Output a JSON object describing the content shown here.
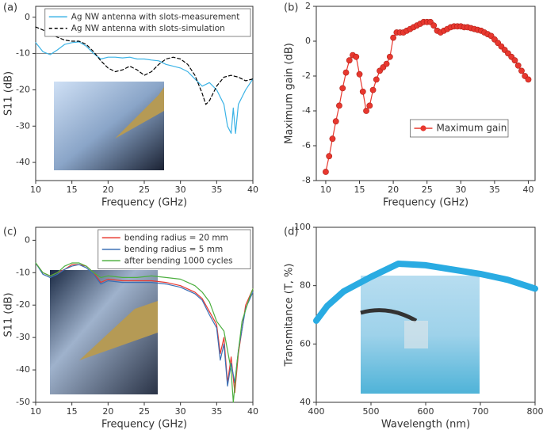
{
  "chart_data": [
    {
      "type": "line",
      "panel_label": "(a)",
      "xlabel": "Frequency (GHz)",
      "ylabel": "S11 (dB)",
      "xlim": [
        10,
        40
      ],
      "ylim": [
        -45,
        3
      ],
      "xticks": [
        10,
        15,
        20,
        25,
        30,
        35,
        40
      ],
      "yticks": [
        -40,
        -30,
        -20,
        -10,
        0
      ],
      "hlines": [
        -10
      ],
      "legend": "upper right",
      "series": [
        {
          "name": "Ag NW antenna with slots-measurement",
          "color": "#3bb3e6",
          "linestyle": "solid",
          "x": [
            10,
            11,
            12,
            13,
            14,
            15,
            16,
            17,
            18,
            19,
            20,
            21,
            22,
            23,
            24,
            25,
            26,
            27,
            28,
            29,
            30,
            31,
            32,
            33,
            34,
            35,
            36,
            36.5,
            37,
            37.3,
            37.6,
            38,
            39,
            40
          ],
          "values": [
            -7,
            -9.5,
            -10.3,
            -9,
            -7.5,
            -7,
            -6.8,
            -8,
            -10,
            -11.5,
            -11,
            -11,
            -11.2,
            -11,
            -11.5,
            -11.5,
            -11.8,
            -12,
            -13,
            -13.5,
            -14,
            -15,
            -17,
            -19,
            -18,
            -20,
            -24,
            -30,
            -32,
            -25,
            -32,
            -24,
            -20,
            -17
          ]
        },
        {
          "name": "Ag NW antenna with slots-simulation",
          "color": "#000000",
          "linestyle": "dashed",
          "x": [
            10,
            11,
            12,
            13,
            14,
            15,
            16,
            17,
            18,
            19,
            20,
            21,
            22,
            23,
            24,
            25,
            26,
            27,
            28,
            29,
            30,
            31,
            32,
            33,
            33.5,
            34,
            35,
            36,
            37,
            38,
            39,
            40
          ],
          "values": [
            -2.7,
            -3.5,
            -4.5,
            -5.5,
            -6.3,
            -6.6,
            -6.6,
            -7.5,
            -9.5,
            -12,
            -14,
            -15,
            -14.5,
            -13.5,
            -14.5,
            -16,
            -15,
            -13,
            -11.5,
            -11,
            -11.5,
            -13,
            -16,
            -21,
            -24,
            -23,
            -19,
            -16.5,
            -16,
            -16.5,
            -17.5,
            -17
          ]
        }
      ]
    },
    {
      "type": "line",
      "panel_label": "(b)",
      "xlabel": "Frequency (GHz)",
      "ylabel": "Maximum gain (dB)",
      "xlim": [
        8.6,
        41
      ],
      "ylim": [
        -8,
        2
      ],
      "xticks": [
        10,
        15,
        20,
        25,
        30,
        35,
        40
      ],
      "yticks": [
        -8,
        -6,
        -4,
        -2,
        0,
        2
      ],
      "legend": "right",
      "markers": true,
      "series": [
        {
          "name": "Maximum gain",
          "color": "#e8382f",
          "linestyle": "solid",
          "x": [
            10,
            10.5,
            11,
            11.5,
            12,
            12.5,
            13,
            13.5,
            14,
            14.5,
            15,
            15.5,
            16,
            16.5,
            17,
            17.5,
            18,
            18.5,
            19,
            19.5,
            20,
            20.5,
            21,
            21.5,
            22,
            22.5,
            23,
            23.5,
            24,
            24.5,
            25,
            25.5,
            26,
            26.5,
            27,
            27.5,
            28,
            28.5,
            29,
            29.5,
            30,
            30.5,
            31,
            31.5,
            32,
            32.5,
            33,
            33.5,
            34,
            34.5,
            35,
            35.5,
            36,
            36.5,
            37,
            37.5,
            38,
            38.5,
            39,
            39.5,
            40
          ],
          "values": [
            -7.5,
            -6.6,
            -5.6,
            -4.6,
            -3.7,
            -2.7,
            -1.8,
            -1.1,
            -0.8,
            -0.9,
            -1.9,
            -2.9,
            -4.0,
            -3.7,
            -2.8,
            -2.2,
            -1.7,
            -1.5,
            -1.3,
            -0.9,
            0.2,
            0.5,
            0.5,
            0.5,
            0.6,
            0.7,
            0.8,
            0.9,
            1.0,
            1.1,
            1.1,
            1.1,
            0.9,
            0.6,
            0.5,
            0.6,
            0.7,
            0.8,
            0.85,
            0.85,
            0.85,
            0.8,
            0.8,
            0.75,
            0.7,
            0.65,
            0.6,
            0.5,
            0.4,
            0.3,
            0.1,
            -0.1,
            -0.3,
            -0.5,
            -0.7,
            -0.9,
            -1.1,
            -1.4,
            -1.7,
            -2.0,
            -2.2
          ]
        }
      ]
    },
    {
      "type": "line",
      "panel_label": "(c)",
      "xlabel": "Frequency (GHz)",
      "ylabel": "S11 (dB)",
      "xlim": [
        10,
        40
      ],
      "ylim": [
        -50,
        4
      ],
      "xticks": [
        10,
        15,
        20,
        25,
        30,
        35,
        40
      ],
      "yticks": [
        -50,
        -40,
        -30,
        -20,
        -10,
        0
      ],
      "legend": "upper right",
      "series": [
        {
          "name": "bending radius = 20 mm",
          "color": "#e8382f",
          "linestyle": "solid",
          "x": [
            10,
            11,
            12,
            13,
            14,
            15,
            16,
            17,
            18,
            19,
            20,
            22,
            24,
            26,
            28,
            30,
            31,
            32,
            33,
            34,
            35,
            35.5,
            36,
            36.5,
            37,
            37.5,
            38,
            39,
            40
          ],
          "values": [
            -7,
            -10,
            -11,
            -10,
            -9,
            -7.5,
            -7.5,
            -8,
            -10,
            -13,
            -12,
            -12.5,
            -12.5,
            -12.5,
            -13,
            -14,
            -15,
            -16,
            -18,
            -22,
            -26,
            -35,
            -30,
            -44,
            -36,
            -47,
            -35,
            -20,
            -15
          ]
        },
        {
          "name": "bending radius = 5 mm",
          "color": "#3a6fb5",
          "linestyle": "solid",
          "x": [
            10,
            11,
            12,
            13,
            14,
            15,
            16,
            17,
            18,
            19,
            20,
            22,
            24,
            26,
            28,
            30,
            31,
            32,
            33,
            34,
            35,
            35.5,
            36,
            36.5,
            37,
            37.5,
            38,
            39,
            40
          ],
          "values": [
            -7,
            -10.5,
            -11.5,
            -10.5,
            -9,
            -8,
            -7.5,
            -8.5,
            -10.5,
            -13.5,
            -12.5,
            -13,
            -13,
            -13,
            -13.5,
            -14.5,
            -15.5,
            -16.5,
            -18.5,
            -23,
            -27,
            -37,
            -32,
            -45,
            -38,
            -44,
            -34,
            -21,
            -16
          ]
        },
        {
          "name": "after bending 1000 cycles",
          "color": "#4caf3f",
          "linestyle": "solid",
          "x": [
            10,
            11,
            12,
            13,
            14,
            15,
            16,
            17,
            18,
            19,
            20,
            22,
            24,
            26,
            28,
            30,
            31,
            32,
            33,
            34,
            35,
            36,
            37,
            37.3,
            37.8,
            38.5,
            39.5,
            40
          ],
          "values": [
            -7,
            -10,
            -11,
            -10,
            -8,
            -7,
            -7,
            -8,
            -10,
            -11.5,
            -11,
            -11.5,
            -11.5,
            -11,
            -11.5,
            -12,
            -13,
            -14,
            -16,
            -19,
            -25,
            -28,
            -40,
            -50,
            -38,
            -25,
            -18,
            -15
          ]
        }
      ]
    },
    {
      "type": "line",
      "panel_label": "(d)",
      "xlabel": "Wavelength (nm)",
      "ylabel": "Transmitance (T, %)",
      "xlim": [
        400,
        800
      ],
      "ylim": [
        40,
        100
      ],
      "xticks": [
        400,
        500,
        600,
        700,
        800
      ],
      "yticks": [
        40,
        60,
        80,
        100
      ],
      "series": [
        {
          "color": "#29abe2",
          "linestyle": "thick",
          "x": [
            400,
            420,
            450,
            500,
            550,
            600,
            650,
            700,
            750,
            800
          ],
          "values": [
            68,
            73,
            78,
            83,
            87.5,
            87,
            85.5,
            84,
            82,
            79
          ]
        }
      ]
    }
  ]
}
